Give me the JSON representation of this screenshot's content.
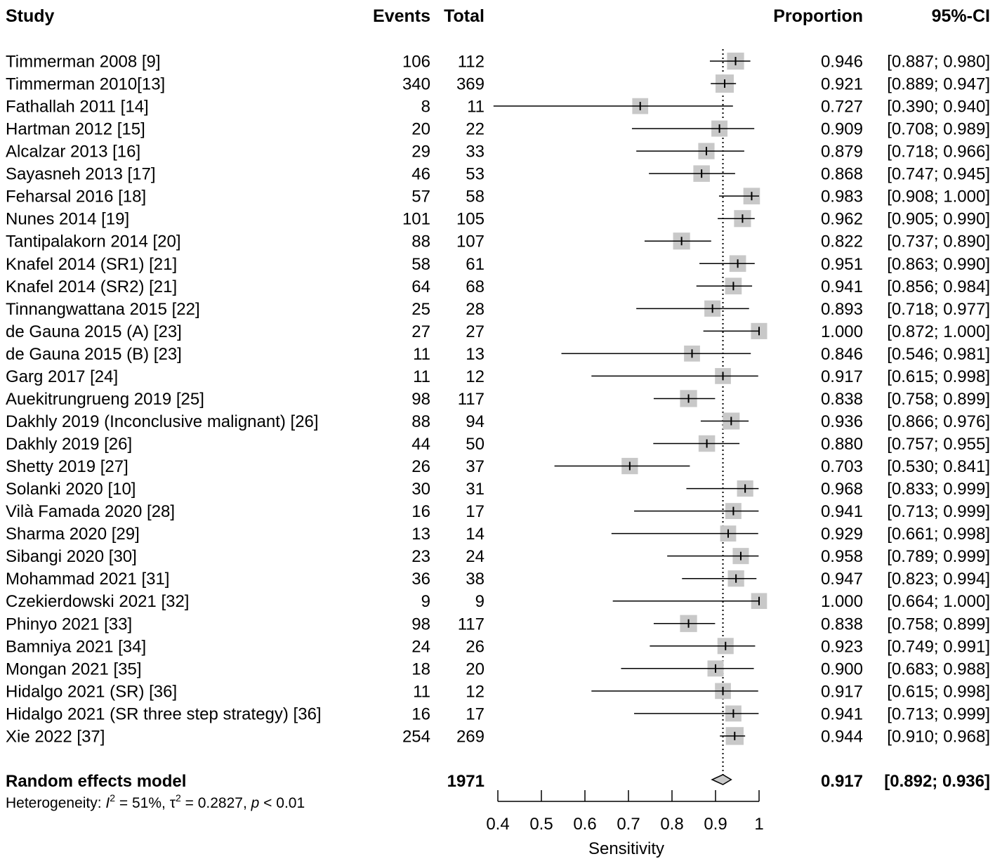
{
  "chart_data": {
    "type": "forest",
    "headers": {
      "study": "Study",
      "events": "Events",
      "total": "Total",
      "proportion": "Proportion",
      "ci": "95%-CI"
    },
    "studies": [
      {
        "study": "Timmerman 2008 [9]",
        "events": "106",
        "total": "112",
        "prop": 0.946,
        "lo": 0.887,
        "hi": 0.98,
        "prop_text": "0.946",
        "ci_text": "[0.887; 0.980]"
      },
      {
        "study": "Timmerman 2010[13]",
        "events": "340",
        "total": "369",
        "prop": 0.921,
        "lo": 0.889,
        "hi": 0.947,
        "prop_text": "0.921",
        "ci_text": "[0.889; 0.947]"
      },
      {
        "study": "Fathallah 2011 [14]",
        "events": "8",
        "total": "11",
        "prop": 0.727,
        "lo": 0.39,
        "hi": 0.94,
        "prop_text": "0.727",
        "ci_text": "[0.390; 0.940]"
      },
      {
        "study": "Hartman 2012 [15]",
        "events": "20",
        "total": "22",
        "prop": 0.909,
        "lo": 0.708,
        "hi": 0.989,
        "prop_text": "0.909",
        "ci_text": "[0.708; 0.989]"
      },
      {
        "study": "Alcalzar 2013 [16]",
        "events": "29",
        "total": "33",
        "prop": 0.879,
        "lo": 0.718,
        "hi": 0.966,
        "prop_text": "0.879",
        "ci_text": "[0.718; 0.966]"
      },
      {
        "study": "Sayasneh 2013 [17]",
        "events": "46",
        "total": "53",
        "prop": 0.868,
        "lo": 0.747,
        "hi": 0.945,
        "prop_text": "0.868",
        "ci_text": "[0.747; 0.945]"
      },
      {
        "study": "Feharsal 2016 [18]",
        "events": "57",
        "total": "58",
        "prop": 0.983,
        "lo": 0.908,
        "hi": 1.0,
        "prop_text": "0.983",
        "ci_text": "[0.908; 1.000]"
      },
      {
        "study": "Nunes 2014 [19]",
        "events": "101",
        "total": "105",
        "prop": 0.962,
        "lo": 0.905,
        "hi": 0.99,
        "prop_text": "0.962",
        "ci_text": "[0.905; 0.990]"
      },
      {
        "study": "Tantipalakorn 2014 [20]",
        "events": "88",
        "total": "107",
        "prop": 0.822,
        "lo": 0.737,
        "hi": 0.89,
        "prop_text": "0.822",
        "ci_text": "[0.737; 0.890]"
      },
      {
        "study": "Knafel 2014  (SR1) [21]",
        "events": "58",
        "total": "61",
        "prop": 0.951,
        "lo": 0.863,
        "hi": 0.99,
        "prop_text": "0.951",
        "ci_text": "[0.863; 0.990]"
      },
      {
        "study": "Knafel 2014 (SR2) [21]",
        "events": "64",
        "total": "68",
        "prop": 0.941,
        "lo": 0.856,
        "hi": 0.984,
        "prop_text": "0.941",
        "ci_text": "[0.856; 0.984]"
      },
      {
        "study": "Tinnangwattana 2015 [22]",
        "events": "25",
        "total": "28",
        "prop": 0.893,
        "lo": 0.718,
        "hi": 0.977,
        "prop_text": "0.893",
        "ci_text": "[0.718; 0.977]"
      },
      {
        "study": "de Gauna 2015 (A) [23]",
        "events": "27",
        "total": "27",
        "prop": 1.0,
        "lo": 0.872,
        "hi": 1.0,
        "prop_text": "1.000",
        "ci_text": "[0.872; 1.000]"
      },
      {
        "study": "de Gauna 2015 (B) [23]",
        "events": "11",
        "total": "13",
        "prop": 0.846,
        "lo": 0.546,
        "hi": 0.981,
        "prop_text": "0.846",
        "ci_text": "[0.546; 0.981]"
      },
      {
        "study": "Garg 2017 [24]",
        "events": "11",
        "total": "12",
        "prop": 0.917,
        "lo": 0.615,
        "hi": 0.998,
        "prop_text": "0.917",
        "ci_text": "[0.615; 0.998]"
      },
      {
        "study": "Auekitrungrueng  2019 [25]",
        "events": "98",
        "total": "117",
        "prop": 0.838,
        "lo": 0.758,
        "hi": 0.899,
        "prop_text": "0.838",
        "ci_text": "[0.758; 0.899]"
      },
      {
        "study": "Dakhly  2019 (Inconclusive malignant) [26]",
        "events": "88",
        "total": "94",
        "prop": 0.936,
        "lo": 0.866,
        "hi": 0.976,
        "prop_text": "0.936",
        "ci_text": "[0.866; 0.976]"
      },
      {
        "study": "Dakhly  2019 [26]",
        "events": "44",
        "total": "50",
        "prop": 0.88,
        "lo": 0.757,
        "hi": 0.955,
        "prop_text": "0.880",
        "ci_text": "[0.757; 0.955]"
      },
      {
        "study": "Shetty  2019 [27]",
        "events": "26",
        "total": "37",
        "prop": 0.703,
        "lo": 0.53,
        "hi": 0.841,
        "prop_text": "0.703",
        "ci_text": "[0.530; 0.841]"
      },
      {
        "study": "Solanki  2020 [10]",
        "events": "30",
        "total": "31",
        "prop": 0.968,
        "lo": 0.833,
        "hi": 0.999,
        "prop_text": "0.968",
        "ci_text": "[0.833; 0.999]"
      },
      {
        "study": "Vilà Famada 2020 [28]",
        "events": "16",
        "total": "17",
        "prop": 0.941,
        "lo": 0.713,
        "hi": 0.999,
        "prop_text": "0.941",
        "ci_text": "[0.713; 0.999]"
      },
      {
        "study": "Sharma  2020 [29]",
        "events": "13",
        "total": "14",
        "prop": 0.929,
        "lo": 0.661,
        "hi": 0.998,
        "prop_text": "0.929",
        "ci_text": "[0.661; 0.998]"
      },
      {
        "study": "Sibangi 2020 [30]",
        "events": "23",
        "total": "24",
        "prop": 0.958,
        "lo": 0.789,
        "hi": 0.999,
        "prop_text": "0.958",
        "ci_text": "[0.789; 0.999]"
      },
      {
        "study": "Mohammad 2021 [31]",
        "events": "36",
        "total": "38",
        "prop": 0.947,
        "lo": 0.823,
        "hi": 0.994,
        "prop_text": "0.947",
        "ci_text": "[0.823; 0.994]"
      },
      {
        "study": "Czekierdowski  2021 [32]",
        "events": "9",
        "total": "9",
        "prop": 1.0,
        "lo": 0.664,
        "hi": 1.0,
        "prop_text": "1.000",
        "ci_text": "[0.664; 1.000]"
      },
      {
        "study": "Phinyo  2021 [33]",
        "events": "98",
        "total": "117",
        "prop": 0.838,
        "lo": 0.758,
        "hi": 0.899,
        "prop_text": "0.838",
        "ci_text": "[0.758; 0.899]"
      },
      {
        "study": "Bamniya  2021 [34]",
        "events": "24",
        "total": "26",
        "prop": 0.923,
        "lo": 0.749,
        "hi": 0.991,
        "prop_text": "0.923",
        "ci_text": "[0.749; 0.991]"
      },
      {
        "study": "Mongan  2021 [35]",
        "events": "18",
        "total": "20",
        "prop": 0.9,
        "lo": 0.683,
        "hi": 0.988,
        "prop_text": "0.900",
        "ci_text": "[0.683; 0.988]"
      },
      {
        "study": "Hidalgo  2021 (SR) [36]",
        "events": "11",
        "total": "12",
        "prop": 0.917,
        "lo": 0.615,
        "hi": 0.998,
        "prop_text": "0.917",
        "ci_text": "[0.615; 0.998]"
      },
      {
        "study": "Hidalgo  2021 (SR three step strategy) [36]",
        "events": "16",
        "total": "17",
        "prop": 0.941,
        "lo": 0.713,
        "hi": 0.999,
        "prop_text": "0.941",
        "ci_text": "[0.713; 0.999]"
      },
      {
        "study": "Xie 2022 [37]",
        "events": "254",
        "total": "269",
        "prop": 0.944,
        "lo": 0.91,
        "hi": 0.968,
        "prop_text": "0.944",
        "ci_text": "[0.910; 0.968]"
      }
    ],
    "summary": {
      "label": "Random effects model",
      "total": "1971",
      "prop": 0.917,
      "lo": 0.892,
      "hi": 0.936,
      "prop_text": "0.917",
      "ci_text": "[0.892; 0.936]"
    },
    "heterogeneity": {
      "prefix": "Heterogeneity: ",
      "i2_symbol": "I",
      "i2_value": " = 51%, ",
      "tau2_symbol": "τ",
      "tau2_value": " = 0.2827, ",
      "p_symbol": "p",
      "p_value": " < 0.01"
    },
    "xaxis": {
      "label": "Sensitivity",
      "range": [
        0.4,
        1.0
      ],
      "ticks": [
        0.4,
        0.5,
        0.6,
        0.7,
        0.8,
        0.9,
        1.0
      ],
      "tick_labels": [
        "0.4",
        "0.5",
        "0.6",
        "0.7",
        "0.8",
        "0.9",
        "1"
      ]
    },
    "reference_line": 0.917,
    "colors": {
      "box": "#c8c8c8",
      "line": "#000000",
      "diamond_fill": "#c8c8c8"
    }
  }
}
